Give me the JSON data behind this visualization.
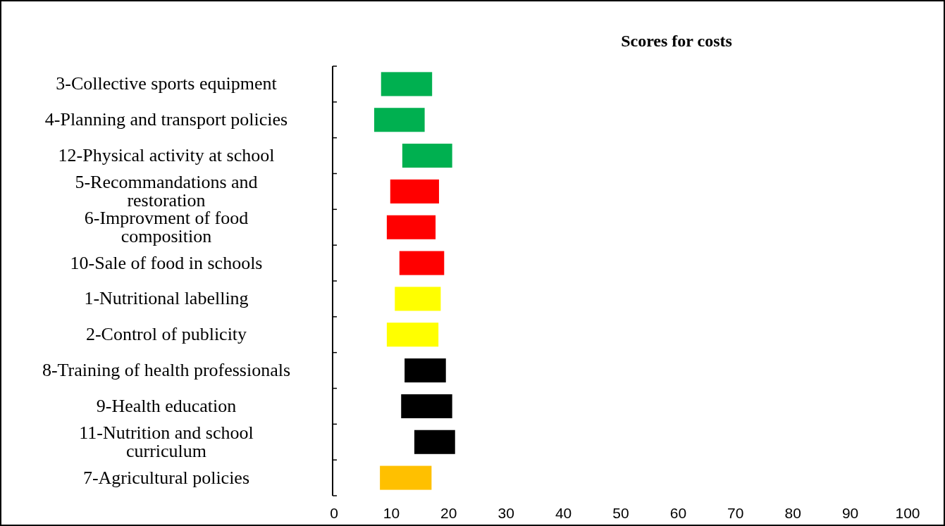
{
  "chart_data": {
    "type": "bar",
    "orientation": "horizontal",
    "title": "Scores for costs",
    "categories": [
      "3-Collective sports equipment",
      "4-Planning and transport policies",
      "12-Physical activity at school",
      "5-Recommandations and restoration",
      "6-Improvment of food composition",
      "10-Sale of food in schools",
      "1-Nutritional labelling",
      "2-Control of publicity",
      "8-Training of health professionals",
      "9-Health education",
      "11-Nutrition and school curriculum",
      "7-Agricultural policies"
    ],
    "base": [
      8.2,
      7.0,
      11.9,
      9.8,
      9.2,
      11.4,
      10.6,
      9.2,
      12.3,
      11.7,
      14.0,
      8.0
    ],
    "values": [
      8.9,
      8.8,
      8.7,
      8.5,
      8.5,
      7.8,
      8.0,
      9.0,
      7.2,
      8.9,
      7.1,
      9.0
    ],
    "colors": [
      "#00b050",
      "#00b050",
      "#00b050",
      "#ff0000",
      "#ff0000",
      "#ff0000",
      "#ffff00",
      "#ffff00",
      "#000000",
      "#000000",
      "#000000",
      "#ffc000"
    ],
    "xlim": [
      0,
      100
    ],
    "xticks": [
      0,
      10,
      20,
      30,
      40,
      50,
      60,
      70,
      80,
      90,
      100
    ]
  }
}
